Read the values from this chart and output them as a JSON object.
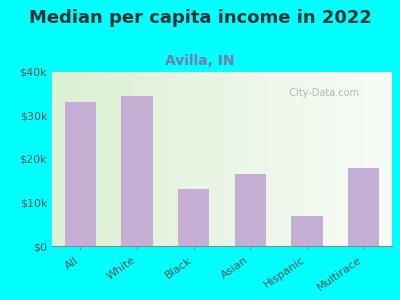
{
  "title": "Median per capita income in 2022",
  "subtitle": "Avilla, IN",
  "categories": [
    "All",
    "White",
    "Black",
    "Asian",
    "Hispanic",
    "Multirace"
  ],
  "values": [
    33000,
    34500,
    13000,
    16500,
    7000,
    18000
  ],
  "bar_color": "#c4aed4",
  "ylim": [
    0,
    40000
  ],
  "yticks": [
    0,
    10000,
    20000,
    30000,
    40000
  ],
  "ytick_labels": [
    "$0",
    "$10k",
    "$20k",
    "$30k",
    "$40k"
  ],
  "background_color": "#00FFFF",
  "title_fontsize": 13,
  "subtitle_fontsize": 10,
  "subtitle_color": "#7a7aaa",
  "watermark": "  City-Data.com",
  "title_color": "#333333"
}
